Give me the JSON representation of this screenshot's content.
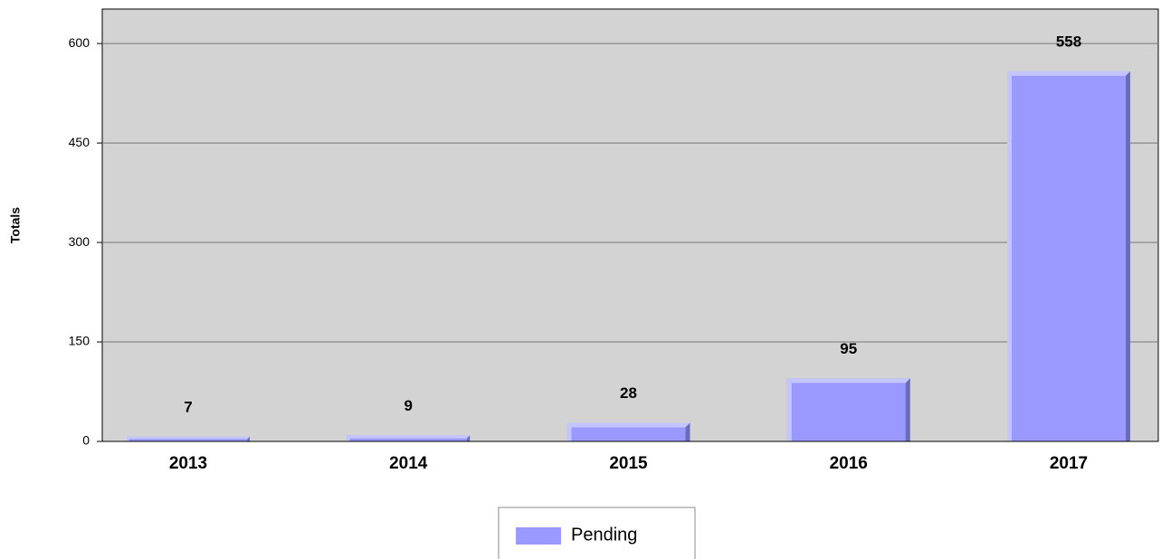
{
  "chart_data": {
    "type": "bar",
    "y_label": "Totals",
    "categories": [
      "2013",
      "2014",
      "2015",
      "2016",
      "2017"
    ],
    "series": [
      {
        "name": "Pending",
        "color": "#9999ff",
        "values": [
          7,
          9,
          28,
          95,
          558
        ]
      }
    ],
    "ylim": [
      0,
      652
    ],
    "yticks": [
      0,
      150,
      300,
      450,
      600
    ],
    "grid": true,
    "value_labels_shown": true,
    "legend": "bottom"
  }
}
